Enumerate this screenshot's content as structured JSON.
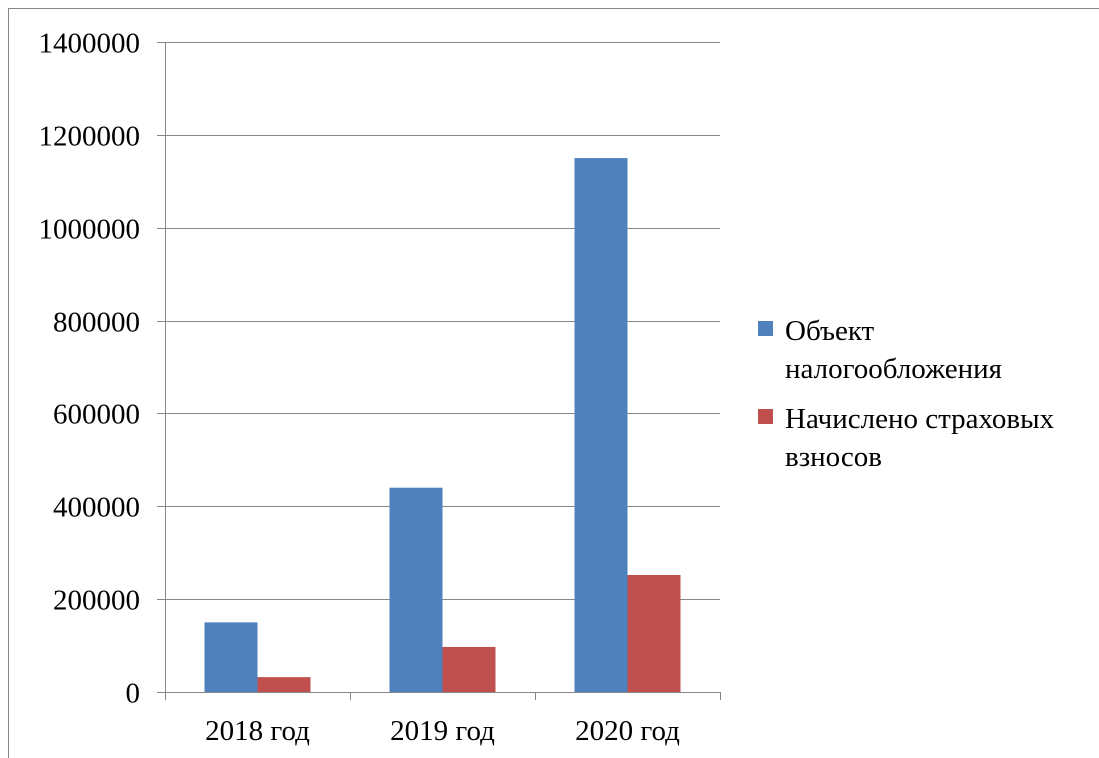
{
  "chart_data": {
    "type": "bar",
    "categories": [
      "2018 год",
      "2019 год",
      "2020 год"
    ],
    "series": [
      {
        "name": "Объект налогообложения",
        "values": [
          150000,
          440000,
          1150000
        ],
        "color": "#4F81BD"
      },
      {
        "name": "Начислено страховых взносов",
        "values": [
          32000,
          97000,
          252000
        ],
        "color": "#C0504D"
      }
    ],
    "ylim": [
      0,
      1400000
    ],
    "yticks": [
      0,
      200000,
      400000,
      600000,
      800000,
      1000000,
      1200000,
      1400000
    ],
    "grid": true,
    "legend_position": "right"
  }
}
